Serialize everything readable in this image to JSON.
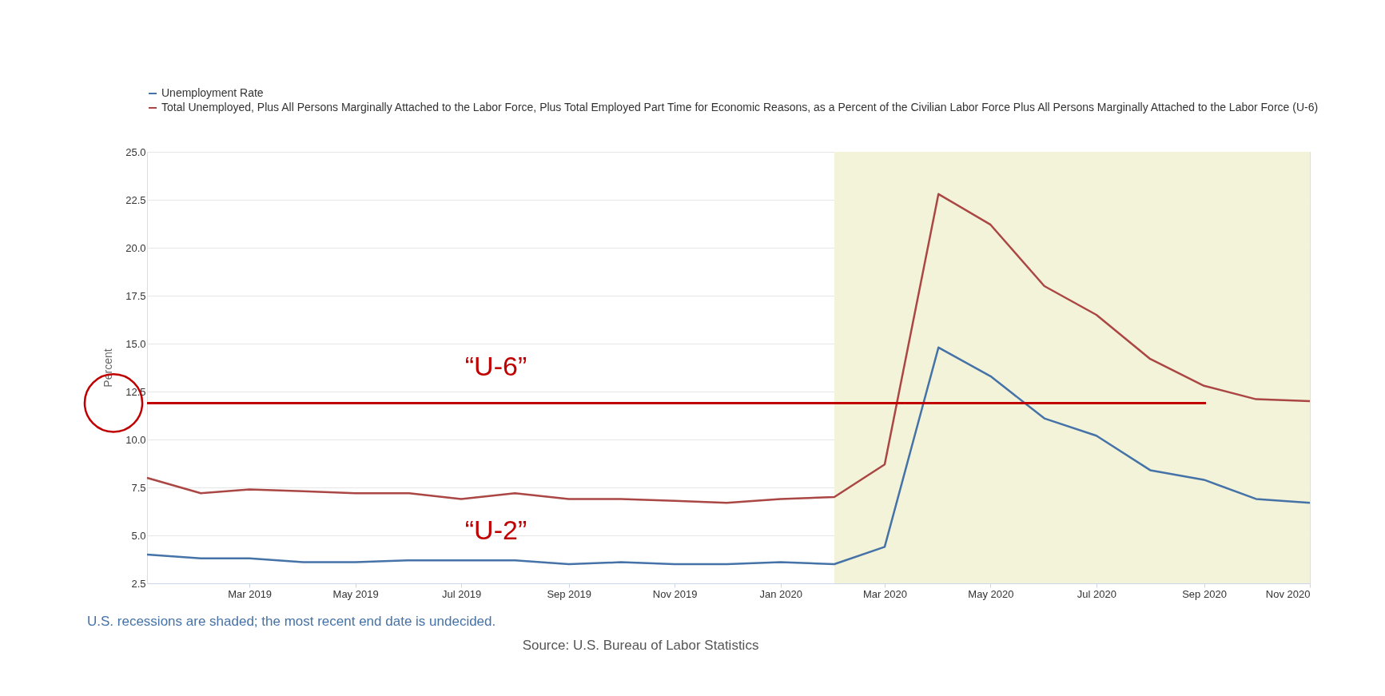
{
  "chart_data": {
    "type": "line",
    "x": [
      "2019-01",
      "2019-02",
      "2019-03",
      "2019-04",
      "2019-05",
      "2019-06",
      "2019-07",
      "2019-08",
      "2019-09",
      "2019-10",
      "2019-11",
      "2019-12",
      "2020-01",
      "2020-02",
      "2020-03",
      "2020-04",
      "2020-05",
      "2020-06",
      "2020-07",
      "2020-08",
      "2020-09",
      "2020-10",
      "2020-11"
    ],
    "series": [
      {
        "name": "Unemployment Rate",
        "color": "#4572a7",
        "values": [
          4.0,
          3.8,
          3.8,
          3.6,
          3.6,
          3.7,
          3.7,
          3.7,
          3.5,
          3.6,
          3.5,
          3.5,
          3.6,
          3.5,
          4.4,
          14.8,
          13.3,
          11.1,
          10.2,
          8.4,
          7.9,
          6.9,
          6.7
        ]
      },
      {
        "name": "Total Unemployed, Plus All Persons Marginally Attached to the Labor Force, Plus Total Employed Part Time for Economic Reasons, as a Percent of the Civilian Labor Force Plus All Persons Marginally Attached to the Labor Force (U-6)",
        "color": "#aa4643",
        "values": [
          8.0,
          7.2,
          7.4,
          7.3,
          7.2,
          7.2,
          6.9,
          7.2,
          6.9,
          6.9,
          6.8,
          6.7,
          6.9,
          7.0,
          8.7,
          22.8,
          21.2,
          18.0,
          16.5,
          14.2,
          12.8,
          12.1,
          12.0
        ]
      }
    ],
    "ylabel": "Percent",
    "ylim": [
      2.5,
      25.0
    ],
    "yticks": [
      {
        "value": 2.5,
        "label": "2.5"
      },
      {
        "value": 5,
        "label": "5.0"
      },
      {
        "value": 7.5,
        "label": "7.5"
      },
      {
        "value": 10,
        "label": "10.0"
      },
      {
        "value": 12.5,
        "label": "12.5"
      },
      {
        "value": 15,
        "label": "15.0"
      },
      {
        "value": 17.5,
        "label": "17.5"
      },
      {
        "value": 20,
        "label": "20.0"
      },
      {
        "value": 22.5,
        "label": "22.5"
      },
      {
        "value": 25,
        "label": "25.0"
      }
    ],
    "xlim": [
      "2019-01",
      "2020-11"
    ],
    "xticks": [
      {
        "value": "2019-03",
        "label": "Mar 2019"
      },
      {
        "value": "2019-05",
        "label": "May 2019"
      },
      {
        "value": "2019-07",
        "label": "Jul 2019"
      },
      {
        "value": "2019-09",
        "label": "Sep 2019"
      },
      {
        "value": "2019-11",
        "label": "Nov 2019"
      },
      {
        "value": "2020-01",
        "label": "Jan 2020"
      },
      {
        "value": "2020-03",
        "label": "Mar 2020"
      },
      {
        "value": "2020-05",
        "label": "May 2020"
      },
      {
        "value": "2020-07",
        "label": "Jul 2020"
      },
      {
        "value": "2020-09",
        "label": "Sep 2020"
      },
      {
        "value": "2020-11",
        "label": "Nov 2020"
      }
    ],
    "bands": [
      {
        "axis": "x",
        "from": "2020-02",
        "to": "2020-11",
        "color": "#f3f3da"
      }
    ],
    "ref_lines": [
      {
        "axis": "y",
        "value": 11.9,
        "color": "#c00000"
      }
    ],
    "annotations": [
      "“U-6”",
      "“U-2”",
      "U.S. recessions are shaded; the most recent end date is undecided.",
      "Source: U.S. Bureau of Labor Statistics"
    ],
    "grid": "y",
    "legend": "top left",
    "line_style": "solid",
    "marker": "none"
  }
}
